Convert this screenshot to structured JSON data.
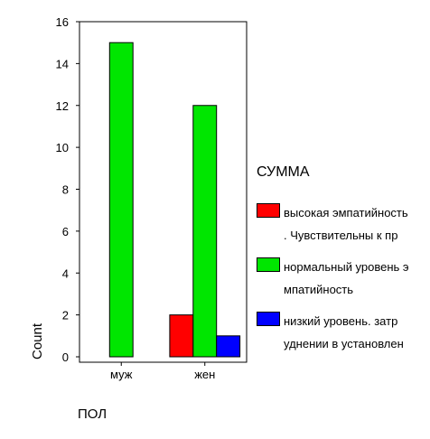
{
  "chart_data": {
    "type": "bar",
    "title": "",
    "xlabel": "ПОЛ",
    "ylabel": "Count",
    "ylim": [
      0,
      16
    ],
    "y_ticks": [
      "0",
      "2",
      "4",
      "6",
      "8",
      "10",
      "12",
      "14",
      "16"
    ],
    "categories": [
      "муж",
      "жен"
    ],
    "legend_title": "СУММА",
    "legend_position": "right",
    "grid": false,
    "series": [
      {
        "name": "высокая эмпатийность. Чувствительны к пр",
        "legend_text": "высокая эмпатийность\n. Чувствительны к пр",
        "color": "#ff0000",
        "values": [
          0,
          2
        ]
      },
      {
        "name": "нормальный уровень эмпатийность",
        "legend_text": "нормальный уровень э\nмпатийность",
        "color": "#00e600",
        "values": [
          15,
          12
        ]
      },
      {
        "name": "низкий уровень. затруднении в установлен",
        "legend_text": "низкий уровень. затр\nуднении в установлен",
        "color": "#0000ff",
        "values": [
          0,
          1
        ]
      }
    ]
  }
}
